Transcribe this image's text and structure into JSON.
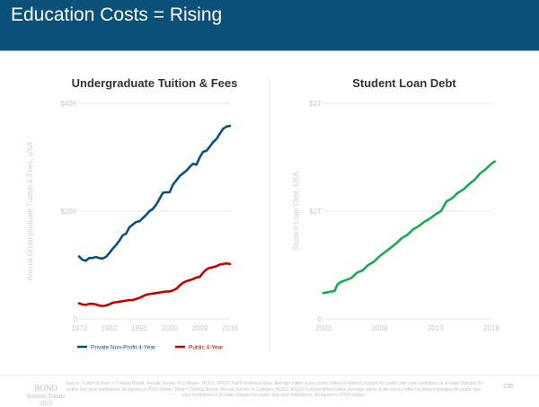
{
  "header": {
    "title": "Education Costs = Rising"
  },
  "colors": {
    "header": "#0b5079",
    "private": "#0b5079",
    "public": "#c00000",
    "debt": "#1aaa55"
  },
  "chart_data": [
    {
      "type": "line",
      "title": "Undergraduate Tuition & Fees",
      "ylabel": "Annual Undergraduate Tuition & Fees, USA",
      "xlabel": "",
      "xlim": [
        1973,
        2018
      ],
      "ylim": [
        0,
        40000
      ],
      "xticks": [
        "1973",
        "1982",
        "1991",
        "2000",
        "2009",
        "2018"
      ],
      "xtick_values": [
        1973,
        1982,
        1991,
        2000,
        2009,
        2018
      ],
      "yticks": [
        "0",
        "$20K",
        "$40K"
      ],
      "ytick_values": [
        0,
        20000,
        40000
      ],
      "legend_position": "bottom",
      "series": [
        {
          "name": "Private Non-Profit 4-Year",
          "color": "#0b5079",
          "x": [
            1973,
            1974,
            1975,
            1976,
            1977,
            1978,
            1979,
            1980,
            1981,
            1982,
            1983,
            1984,
            1985,
            1986,
            1987,
            1988,
            1989,
            1990,
            1991,
            1992,
            1993,
            1994,
            1995,
            1996,
            1997,
            1998,
            1999,
            2000,
            2001,
            2002,
            2003,
            2004,
            2005,
            2006,
            2007,
            2008,
            2009,
            2010,
            2011,
            2012,
            2013,
            2014,
            2015,
            2016,
            2017,
            2018
          ],
          "y": [
            11600,
            11000,
            10800,
            11300,
            11300,
            11500,
            11300,
            11200,
            11500,
            12200,
            13000,
            13700,
            14500,
            15500,
            15800,
            17000,
            17500,
            18000,
            18100,
            18700,
            19300,
            20000,
            20400,
            21200,
            22300,
            23400,
            23500,
            23500,
            24900,
            25700,
            26500,
            27000,
            27500,
            28200,
            28800,
            28600,
            30000,
            31000,
            31200,
            32000,
            32800,
            33400,
            34400,
            35300,
            35700,
            35800
          ]
        },
        {
          "name": "Public 4-Year",
          "color": "#c00000",
          "x": [
            1973,
            1974,
            1975,
            1976,
            1977,
            1978,
            1979,
            1980,
            1981,
            1982,
            1983,
            1984,
            1985,
            1986,
            1987,
            1988,
            1989,
            1990,
            1991,
            1992,
            1993,
            1994,
            1995,
            1996,
            1997,
            1998,
            1999,
            2000,
            2001,
            2002,
            2003,
            2004,
            2005,
            2006,
            2007,
            2008,
            2009,
            2010,
            2011,
            2012,
            2013,
            2014,
            2015,
            2016,
            2017,
            2018
          ],
          "y": [
            2900,
            2700,
            2600,
            2800,
            2800,
            2700,
            2500,
            2400,
            2500,
            2700,
            3000,
            3100,
            3200,
            3300,
            3400,
            3500,
            3500,
            3700,
            3900,
            4200,
            4500,
            4600,
            4700,
            4800,
            4900,
            5000,
            5100,
            5100,
            5300,
            5600,
            6200,
            6700,
            7000,
            7200,
            7400,
            7700,
            7800,
            8600,
            9200,
            9500,
            9600,
            9800,
            10100,
            10200,
            10300,
            10200
          ]
        }
      ]
    },
    {
      "type": "line",
      "title": "Student Loan Debt",
      "ylabel": "Student Loan Debt, USA",
      "xlabel": "",
      "xlim": [
        2003,
        2018.3
      ],
      "ylim": [
        0,
        2
      ],
      "units": "trillion USD",
      "xticks": [
        "2003",
        "2008",
        "2013",
        "2018"
      ],
      "xtick_values": [
        2003,
        2008,
        2013,
        2018
      ],
      "yticks": [
        "0",
        "$1T",
        "$2T"
      ],
      "ytick_values": [
        0,
        1,
        2
      ],
      "series": [
        {
          "name": "Student Loan Debt",
          "color": "#1aaa55",
          "x": [
            2003,
            2004,
            2004.25,
            2004.5,
            2005,
            2005.5,
            2006,
            2006.5,
            2007,
            2007.5,
            2008,
            2008.5,
            2009,
            2009.5,
            2010,
            2010.5,
            2011,
            2011.5,
            2012,
            2012.5,
            2013,
            2013.5,
            2014,
            2014.5,
            2015,
            2015.5,
            2016,
            2016.5,
            2017,
            2017.5,
            2018,
            2018.3
          ],
          "y": [
            0.24,
            0.26,
            0.32,
            0.34,
            0.36,
            0.38,
            0.43,
            0.45,
            0.5,
            0.53,
            0.58,
            0.62,
            0.66,
            0.7,
            0.75,
            0.78,
            0.83,
            0.86,
            0.9,
            0.93,
            0.97,
            1.0,
            1.09,
            1.12,
            1.17,
            1.2,
            1.25,
            1.29,
            1.35,
            1.39,
            1.44,
            1.46
          ]
        }
      ]
    }
  ],
  "footer": {
    "logo_name": "BOND",
    "logo_line2": "Internet Trends",
    "logo_line3": "2019",
    "source": "Source: Tuition & Fees = College Board, Annual Survey of Colleges; NCES, IPEDS Fall Enrollment data. Average tuition & fee prices reflect in-district charges for public two-year institutions & in-state charges for public four-year institutions. All figures in 2018 dollars. Debt = College Board, Annual Survey of Colleges; NCES, IPEDS Fall Enrollment data. Average tuition & fee prices reflect in-district charges for public two-year institutions & in-state charges for public four-year institutions. All figures in 2018 dollars.",
    "page_number": "235"
  }
}
